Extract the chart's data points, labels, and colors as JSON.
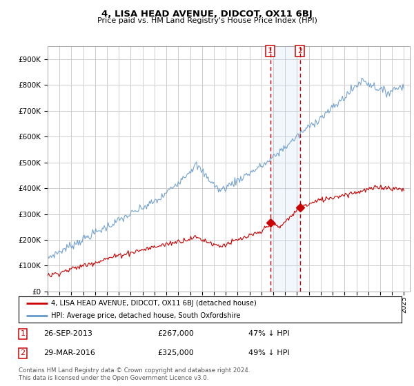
{
  "title": "4, LISA HEAD AVENUE, DIDCOT, OX11 6BJ",
  "subtitle": "Price paid vs. HM Land Registry's House Price Index (HPI)",
  "ylabel_ticks": [
    "£0",
    "£100K",
    "£200K",
    "£300K",
    "£400K",
    "£500K",
    "£600K",
    "£700K",
    "£800K",
    "£900K"
  ],
  "ytick_values": [
    0,
    100000,
    200000,
    300000,
    400000,
    500000,
    600000,
    700000,
    800000,
    900000
  ],
  "ylim": [
    0,
    950000
  ],
  "xlim_start": 1995.0,
  "xlim_end": 2025.5,
  "year_ticks": [
    1995,
    1996,
    1997,
    1998,
    1999,
    2000,
    2001,
    2002,
    2003,
    2004,
    2005,
    2006,
    2007,
    2008,
    2009,
    2010,
    2011,
    2012,
    2013,
    2014,
    2015,
    2016,
    2017,
    2018,
    2019,
    2020,
    2021,
    2022,
    2023,
    2024,
    2025
  ],
  "hpi_color": "#6699cc",
  "price_color": "#cc0000",
  "annotation_color": "#cc0000",
  "span_color": "#cce0f5",
  "bg_color": "#ffffff",
  "grid_color": "#cccccc",
  "sale1_x": 2013.74,
  "sale1_y": 267000,
  "sale2_x": 2016.25,
  "sale2_y": 325000,
  "sale1_date": "26-SEP-2013",
  "sale1_price": "£267,000",
  "sale1_note": "47% ↓ HPI",
  "sale2_date": "29-MAR-2016",
  "sale2_price": "£325,000",
  "sale2_note": "49% ↓ HPI",
  "legend_line1": "4, LISA HEAD AVENUE, DIDCOT, OX11 6BJ (detached house)",
  "legend_line2": "HPI: Average price, detached house, South Oxfordshire",
  "footer": "Contains HM Land Registry data © Crown copyright and database right 2024.\nThis data is licensed under the Open Government Licence v3.0."
}
